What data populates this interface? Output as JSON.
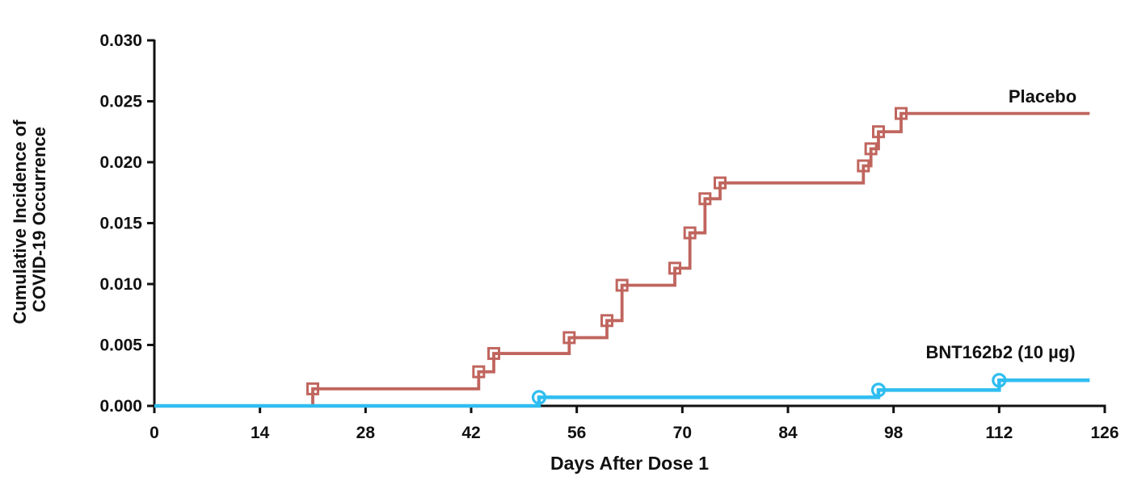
{
  "figure": {
    "background": "#ffffff",
    "axis_color": "#111111",
    "xlabel": "Days After Dose 1",
    "ylabel_line1": "Cumulative Incidence of",
    "ylabel_line2": "COVID-19 Occurrence"
  },
  "chart_data": {
    "type": "line",
    "subtype": "step-cumulative-incidence",
    "title": "",
    "xlabel": "Days After Dose 1",
    "ylabel": "Cumulative Incidence of COVID-19 Occurrence",
    "xlim": [
      0,
      126
    ],
    "ylim": [
      0,
      0.03
    ],
    "x_ticks": [
      0,
      14,
      28,
      42,
      56,
      70,
      84,
      98,
      112,
      126
    ],
    "y_tick_labels": [
      "0.000",
      "0.005",
      "0.010",
      "0.015",
      "0.020",
      "0.025",
      "0.030"
    ],
    "y_tick_values": [
      0.0,
      0.005,
      0.01,
      0.015,
      0.02,
      0.025,
      0.03
    ],
    "grid": false,
    "legend_position": "inline-labels",
    "series": [
      {
        "name": "Placebo",
        "color": "#C0655E",
        "marker": "open-square",
        "step": true,
        "points": [
          [
            0,
            0
          ],
          [
            21,
            0.0014
          ],
          [
            43,
            0.0028
          ],
          [
            45,
            0.0043
          ],
          [
            55,
            0.0056
          ],
          [
            60,
            0.007
          ],
          [
            62,
            0.0099
          ],
          [
            69,
            0.0113
          ],
          [
            71,
            0.0142
          ],
          [
            73,
            0.017
          ],
          [
            75,
            0.0183
          ],
          [
            94,
            0.0197
          ],
          [
            95,
            0.0211
          ],
          [
            96,
            0.0225
          ],
          [
            99,
            0.024
          ],
          [
            124,
            0.024
          ]
        ],
        "event_points": [
          [
            21,
            0.0014
          ],
          [
            43,
            0.0028
          ],
          [
            45,
            0.0043
          ],
          [
            55,
            0.0056
          ],
          [
            60,
            0.007
          ],
          [
            62,
            0.0099
          ],
          [
            69,
            0.0113
          ],
          [
            71,
            0.0142
          ],
          [
            73,
            0.017
          ],
          [
            75,
            0.0183
          ],
          [
            94,
            0.0197
          ],
          [
            95,
            0.0211
          ],
          [
            96,
            0.0225
          ],
          [
            99,
            0.024
          ]
        ],
        "final_value": 0.024
      },
      {
        "name": "BNT162b2 (10 µg)",
        "color": "#2FBDF0",
        "marker": "open-circle",
        "step": true,
        "points": [
          [
            0,
            0
          ],
          [
            51,
            0.0007
          ],
          [
            96,
            0.0013
          ],
          [
            112,
            0.0021
          ],
          [
            124,
            0.0021
          ]
        ],
        "event_points": [
          [
            51,
            0.0007
          ],
          [
            96,
            0.0013
          ],
          [
            112,
            0.0021
          ]
        ],
        "final_value": 0.0021
      }
    ]
  }
}
